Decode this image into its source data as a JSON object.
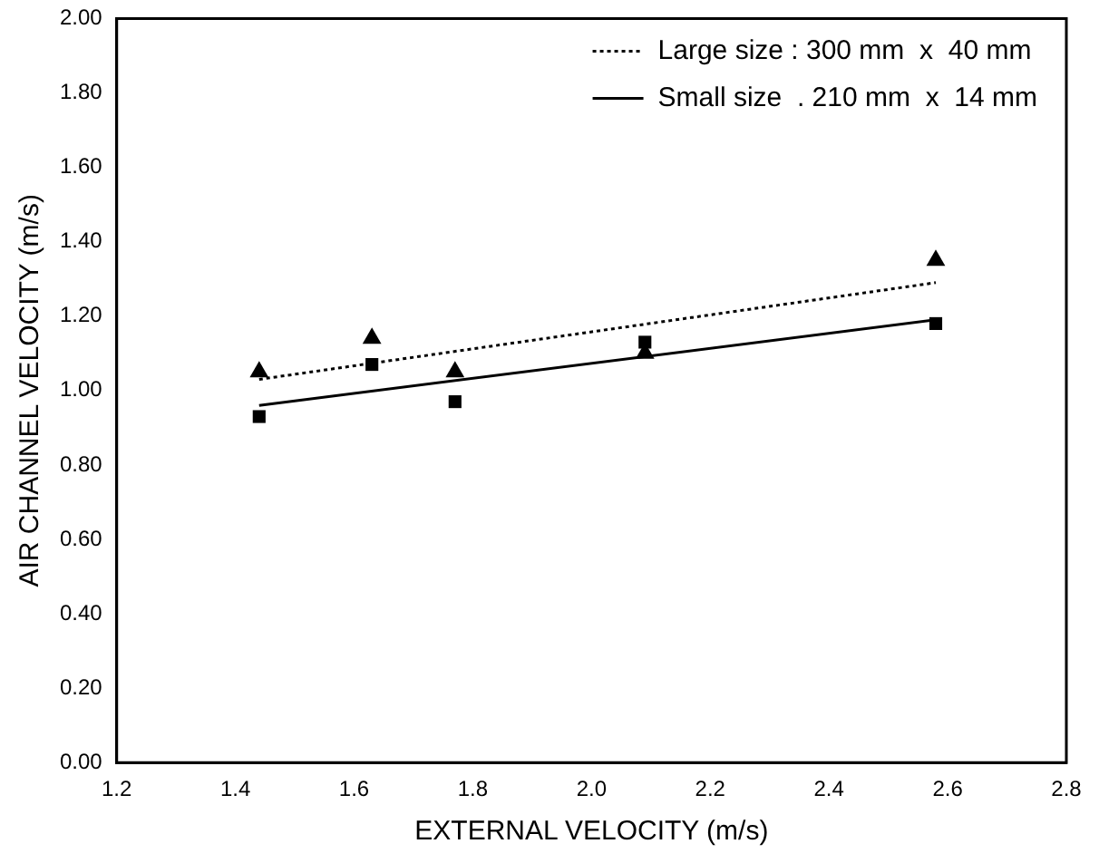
{
  "chart_data": {
    "type": "scatter",
    "xlabel": "EXTERNAL VELOCITY (m/s)",
    "ylabel": "AIR CHANNEL VELOCITY (m/s)",
    "xlim": [
      1.2,
      2.8
    ],
    "xticks": [
      1.2,
      1.4,
      1.6,
      1.8,
      {
        "value": 2.0,
        "label": "2.0"
      },
      2.2,
      2.4,
      2.6,
      2.8
    ],
    "ylim": [
      0,
      2
    ],
    "yticks": [
      {
        "value": 0,
        "label": "0.00"
      },
      {
        "value": 0.2,
        "label": "0.20"
      },
      {
        "value": 0.4,
        "label": "0.40"
      },
      {
        "value": 0.6,
        "label": "0.60"
      },
      {
        "value": 0.8,
        "label": "0.80"
      },
      {
        "value": 1.0,
        "label": "1.00"
      },
      {
        "value": 1.2,
        "label": "1.20"
      },
      {
        "value": 1.4,
        "label": "1.40"
      },
      {
        "value": 1.6,
        "label": "1.60"
      },
      {
        "value": 1.8,
        "label": "1.80"
      },
      {
        "value": 2.0,
        "label": "2.00"
      }
    ],
    "grid": false,
    "legend": "top right",
    "series": [
      {
        "type": "scatter",
        "color": "#000000",
        "marker": "triangle",
        "x": [
          1.44,
          1.63,
          1.77,
          2.09,
          2.58
        ],
        "values": [
          1.05,
          1.14,
          1.05,
          1.1,
          1.35
        ]
      },
      {
        "type": "scatter",
        "color": "#000000",
        "marker": "square",
        "x": [
          1.44,
          1.63,
          1.77,
          2.09,
          2.58
        ],
        "values": [
          0.93,
          1.07,
          0.97,
          1.13,
          1.18
        ]
      },
      {
        "type": "line",
        "name": "Large size : 300 mm  x  40 mm",
        "color": "#000000",
        "line_style": "dotted",
        "marker": "none",
        "x": [
          1.44,
          2.58
        ],
        "values": [
          1.03,
          1.29
        ]
      },
      {
        "type": "line",
        "name": "Small size  . 210 mm  x  14 mm",
        "color": "#000000",
        "line_style": "solid",
        "marker": "none",
        "x": [
          1.44,
          2.58
        ],
        "values": [
          0.96,
          1.19
        ]
      }
    ]
  }
}
